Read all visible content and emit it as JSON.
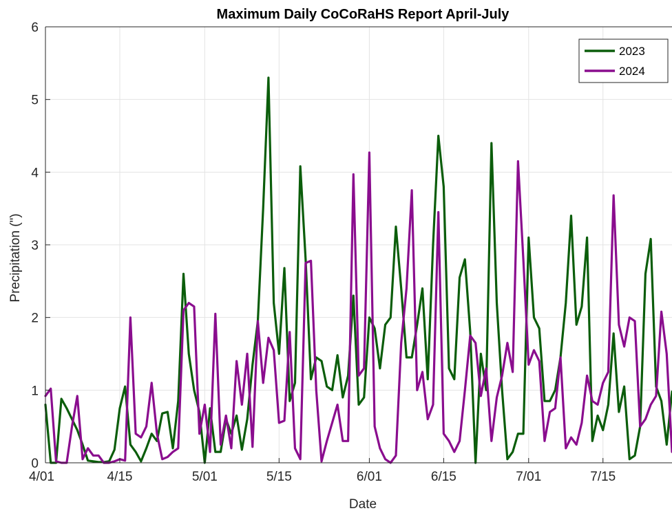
{
  "chart_data": {
    "type": "line",
    "title": "Maximum Daily CoCoRaHS Report April-July",
    "xlabel": "Date",
    "ylabel": "Precipitation (\")",
    "ylim": [
      0,
      6
    ],
    "xlim": [
      "4/01",
      "7/28"
    ],
    "yticks": [
      "0",
      "1",
      "2",
      "3",
      "4",
      "5",
      "6"
    ],
    "xticks": [
      "4/01",
      "4/15",
      "5/01",
      "5/15",
      "6/01",
      "6/15",
      "7/01",
      "7/15"
    ],
    "grid": true,
    "legend_position": "top-right",
    "series": [
      {
        "name": "2023",
        "color": "#0b5d0b",
        "points": [
          [
            "4/01",
            0.8
          ],
          [
            "4/02",
            0.0
          ],
          [
            "4/03",
            0.0
          ],
          [
            "4/04",
            0.88
          ],
          [
            "4/05",
            0.75
          ],
          [
            "4/06",
            0.6
          ],
          [
            "4/07",
            0.45
          ],
          [
            "4/08",
            0.25
          ],
          [
            "4/09",
            0.03
          ],
          [
            "4/10",
            0.02
          ],
          [
            "4/11",
            0.01
          ],
          [
            "4/12",
            0.01
          ],
          [
            "4/13",
            0.02
          ],
          [
            "4/14",
            0.18
          ],
          [
            "4/15",
            0.75
          ],
          [
            "4/16",
            1.05
          ],
          [
            "4/17",
            0.25
          ],
          [
            "4/18",
            0.15
          ],
          [
            "4/19",
            0.02
          ],
          [
            "4/20",
            0.2
          ],
          [
            "4/21",
            0.4
          ],
          [
            "4/22",
            0.3
          ],
          [
            "4/23",
            0.68
          ],
          [
            "4/24",
            0.7
          ],
          [
            "4/25",
            0.2
          ],
          [
            "4/26",
            0.85
          ],
          [
            "4/27",
            2.6
          ],
          [
            "4/28",
            1.5
          ],
          [
            "4/29",
            1.0
          ],
          [
            "4/30",
            0.7
          ],
          [
            "5/01",
            0.0
          ],
          [
            "5/02",
            0.75
          ],
          [
            "5/03",
            0.15
          ],
          [
            "5/04",
            0.15
          ],
          [
            "5/05",
            0.6
          ],
          [
            "5/06",
            0.4
          ],
          [
            "5/07",
            0.65
          ],
          [
            "5/08",
            0.18
          ],
          [
            "5/09",
            0.6
          ],
          [
            "5/10",
            1.35
          ],
          [
            "5/11",
            1.95
          ],
          [
            "5/12",
            3.5
          ],
          [
            "5/13",
            5.3
          ],
          [
            "5/14",
            2.2
          ],
          [
            "5/15",
            1.5
          ],
          [
            "5/16",
            2.68
          ],
          [
            "5/17",
            0.85
          ],
          [
            "5/18",
            1.1
          ],
          [
            "5/19",
            4.08
          ],
          [
            "5/20",
            2.8
          ],
          [
            "5/21",
            1.15
          ],
          [
            "5/22",
            1.45
          ],
          [
            "5/23",
            1.4
          ],
          [
            "5/24",
            1.05
          ],
          [
            "5/25",
            1.0
          ],
          [
            "5/26",
            1.48
          ],
          [
            "5/27",
            0.9
          ],
          [
            "5/28",
            1.2
          ],
          [
            "5/29",
            2.3
          ],
          [
            "5/30",
            0.8
          ],
          [
            "5/31",
            0.9
          ],
          [
            "6/01",
            2.0
          ],
          [
            "6/02",
            1.85
          ],
          [
            "6/03",
            1.3
          ],
          [
            "6/04",
            1.9
          ],
          [
            "6/05",
            2.0
          ],
          [
            "6/06",
            3.25
          ],
          [
            "6/07",
            2.4
          ],
          [
            "6/08",
            1.45
          ],
          [
            "6/09",
            1.45
          ],
          [
            "6/10",
            1.9
          ],
          [
            "6/11",
            2.4
          ],
          [
            "6/12",
            1.15
          ],
          [
            "6/13",
            3.0
          ],
          [
            "6/14",
            4.5
          ],
          [
            "6/15",
            3.8
          ],
          [
            "6/16",
            1.3
          ],
          [
            "6/17",
            1.15
          ],
          [
            "6/18",
            2.55
          ],
          [
            "6/19",
            2.8
          ],
          [
            "6/20",
            1.8
          ],
          [
            "6/21",
            0.0
          ],
          [
            "6/22",
            1.5
          ],
          [
            "6/23",
            1.0
          ],
          [
            "6/24",
            4.4
          ],
          [
            "6/25",
            2.2
          ],
          [
            "6/26",
            1.0
          ],
          [
            "6/27",
            0.05
          ],
          [
            "6/28",
            0.15
          ],
          [
            "6/29",
            0.4
          ],
          [
            "6/30",
            0.4
          ],
          [
            "7/01",
            3.1
          ],
          [
            "7/02",
            2.0
          ],
          [
            "7/03",
            1.85
          ],
          [
            "7/04",
            0.85
          ],
          [
            "7/05",
            0.85
          ],
          [
            "7/06",
            1.0
          ],
          [
            "7/07",
            1.45
          ],
          [
            "7/08",
            2.2
          ],
          [
            "7/09",
            3.4
          ],
          [
            "7/10",
            1.9
          ],
          [
            "7/11",
            2.15
          ],
          [
            "7/12",
            3.1
          ],
          [
            "7/13",
            0.3
          ],
          [
            "7/14",
            0.65
          ],
          [
            "7/15",
            0.45
          ],
          [
            "7/16",
            0.8
          ],
          [
            "7/17",
            1.78
          ],
          [
            "7/18",
            0.7
          ],
          [
            "7/19",
            1.05
          ],
          [
            "7/20",
            0.05
          ],
          [
            "7/21",
            0.1
          ],
          [
            "7/22",
            0.5
          ],
          [
            "7/23",
            2.6
          ],
          [
            "7/24",
            3.08
          ],
          [
            "7/25",
            1.05
          ],
          [
            "7/26",
            0.85
          ],
          [
            "7/27",
            0.25
          ],
          [
            "7/28",
            0.98
          ]
        ]
      },
      {
        "name": "2024",
        "color": "#8a0d8e",
        "points": [
          [
            "4/01",
            0.92
          ],
          [
            "4/02",
            1.02
          ],
          [
            "4/03",
            0.02
          ],
          [
            "4/04",
            0.0
          ],
          [
            "4/05",
            0.0
          ],
          [
            "4/06",
            0.5
          ],
          [
            "4/07",
            0.92
          ],
          [
            "4/08",
            0.05
          ],
          [
            "4/09",
            0.2
          ],
          [
            "4/10",
            0.1
          ],
          [
            "4/11",
            0.1
          ],
          [
            "4/12",
            0.0
          ],
          [
            "4/13",
            0.0
          ],
          [
            "4/14",
            0.02
          ],
          [
            "4/15",
            0.05
          ],
          [
            "4/16",
            0.03
          ],
          [
            "4/17",
            2.0
          ],
          [
            "4/18",
            0.4
          ],
          [
            "4/19",
            0.35
          ],
          [
            "4/20",
            0.5
          ],
          [
            "4/21",
            1.1
          ],
          [
            "4/22",
            0.4
          ],
          [
            "4/23",
            0.05
          ],
          [
            "4/24",
            0.08
          ],
          [
            "4/25",
            0.15
          ],
          [
            "4/26",
            0.2
          ],
          [
            "4/27",
            2.1
          ],
          [
            "4/28",
            2.2
          ],
          [
            "4/29",
            2.15
          ],
          [
            "4/30",
            0.4
          ],
          [
            "5/01",
            0.8
          ],
          [
            "5/02",
            0.15
          ],
          [
            "5/03",
            2.05
          ],
          [
            "5/04",
            0.25
          ],
          [
            "5/05",
            0.65
          ],
          [
            "5/06",
            0.2
          ],
          [
            "5/07",
            1.4
          ],
          [
            "5/08",
            0.8
          ],
          [
            "5/09",
            1.5
          ],
          [
            "5/10",
            0.22
          ],
          [
            "5/11",
            1.95
          ],
          [
            "5/12",
            1.1
          ],
          [
            "5/13",
            1.72
          ],
          [
            "5/14",
            1.55
          ],
          [
            "5/15",
            0.55
          ],
          [
            "5/16",
            0.58
          ],
          [
            "5/17",
            1.8
          ],
          [
            "5/18",
            0.2
          ],
          [
            "5/19",
            0.05
          ],
          [
            "5/20",
            2.75
          ],
          [
            "5/21",
            2.78
          ],
          [
            "5/22",
            1.0
          ],
          [
            "5/23",
            0.02
          ],
          [
            "5/24",
            0.3
          ],
          [
            "5/25",
            0.55
          ],
          [
            "5/26",
            0.8
          ],
          [
            "5/27",
            0.3
          ],
          [
            "5/28",
            0.3
          ],
          [
            "5/29",
            3.97
          ],
          [
            "5/30",
            1.2
          ],
          [
            "5/31",
            1.3
          ],
          [
            "6/01",
            4.27
          ],
          [
            "6/02",
            0.5
          ],
          [
            "6/03",
            0.2
          ],
          [
            "6/04",
            0.05
          ],
          [
            "6/05",
            0.0
          ],
          [
            "6/06",
            0.1
          ],
          [
            "6/07",
            1.65
          ],
          [
            "6/08",
            2.4
          ],
          [
            "6/09",
            3.75
          ],
          [
            "6/10",
            1.0
          ],
          [
            "6/11",
            1.25
          ],
          [
            "6/12",
            0.6
          ],
          [
            "6/13",
            0.8
          ],
          [
            "6/14",
            3.45
          ],
          [
            "6/15",
            0.4
          ],
          [
            "6/16",
            0.3
          ],
          [
            "6/17",
            0.15
          ],
          [
            "6/18",
            0.3
          ],
          [
            "6/19",
            1.0
          ],
          [
            "6/20",
            1.75
          ],
          [
            "6/21",
            1.65
          ],
          [
            "6/22",
            0.92
          ],
          [
            "6/23",
            1.3
          ],
          [
            "6/24",
            0.3
          ],
          [
            "6/25",
            0.9
          ],
          [
            "6/26",
            1.2
          ],
          [
            "6/27",
            1.65
          ],
          [
            "6/28",
            1.25
          ],
          [
            "6/29",
            4.15
          ],
          [
            "6/30",
            2.8
          ],
          [
            "7/01",
            1.35
          ],
          [
            "7/02",
            1.55
          ],
          [
            "7/03",
            1.4
          ],
          [
            "7/04",
            0.3
          ],
          [
            "7/05",
            0.7
          ],
          [
            "7/06",
            0.75
          ],
          [
            "7/07",
            1.45
          ],
          [
            "7/08",
            0.2
          ],
          [
            "7/09",
            0.35
          ],
          [
            "7/10",
            0.25
          ],
          [
            "7/11",
            0.55
          ],
          [
            "7/12",
            1.2
          ],
          [
            "7/13",
            0.85
          ],
          [
            "7/14",
            0.8
          ],
          [
            "7/15",
            1.1
          ],
          [
            "7/16",
            1.25
          ],
          [
            "7/17",
            3.68
          ],
          [
            "7/18",
            1.9
          ],
          [
            "7/19",
            1.6
          ],
          [
            "7/20",
            2.0
          ],
          [
            "7/21",
            1.95
          ],
          [
            "7/22",
            0.5
          ],
          [
            "7/23",
            0.6
          ],
          [
            "7/24",
            0.8
          ],
          [
            "7/25",
            0.92
          ],
          [
            "7/26",
            2.08
          ],
          [
            "7/27",
            1.5
          ],
          [
            "7/28",
            0.15
          ]
        ]
      }
    ]
  }
}
